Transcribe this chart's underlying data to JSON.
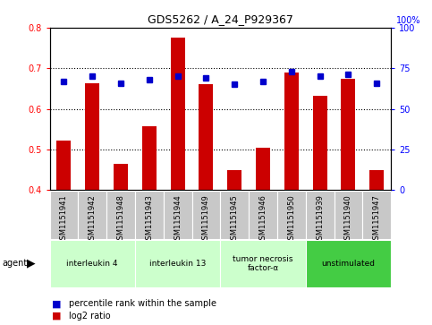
{
  "title": "GDS5262 / A_24_P929367",
  "samples": [
    "GSM1151941",
    "GSM1151942",
    "GSM1151948",
    "GSM1151943",
    "GSM1151944",
    "GSM1151949",
    "GSM1151945",
    "GSM1151946",
    "GSM1151950",
    "GSM1151939",
    "GSM1151940",
    "GSM1151947"
  ],
  "log2_ratio": [
    0.521,
    0.663,
    0.464,
    0.558,
    0.775,
    0.66,
    0.45,
    0.505,
    0.69,
    0.632,
    0.675,
    0.45
  ],
  "percentile_rank": [
    67,
    70,
    66,
    68,
    70,
    69,
    65,
    67,
    73,
    70,
    71,
    66
  ],
  "bar_color": "#cc0000",
  "dot_color": "#0000cc",
  "ylim_left": [
    0.4,
    0.8
  ],
  "ylim_right": [
    0,
    100
  ],
  "yticks_left": [
    0.4,
    0.5,
    0.6,
    0.7,
    0.8
  ],
  "yticks_right": [
    0,
    25,
    50,
    75,
    100
  ],
  "group_data": [
    {
      "label": "interleukin 4",
      "start": 0,
      "end": 3,
      "color": "#ccffcc"
    },
    {
      "label": "interleukin 13",
      "start": 3,
      "end": 6,
      "color": "#ccffcc"
    },
    {
      "label": "tumor necrosis\nfactor-α",
      "start": 6,
      "end": 9,
      "color": "#ccffcc"
    },
    {
      "label": "unstimulated",
      "start": 9,
      "end": 12,
      "color": "#44cc44"
    }
  ],
  "legend_bar_label": "log2 ratio",
  "legend_dot_label": "percentile rank within the sample",
  "agent_label": "agent"
}
